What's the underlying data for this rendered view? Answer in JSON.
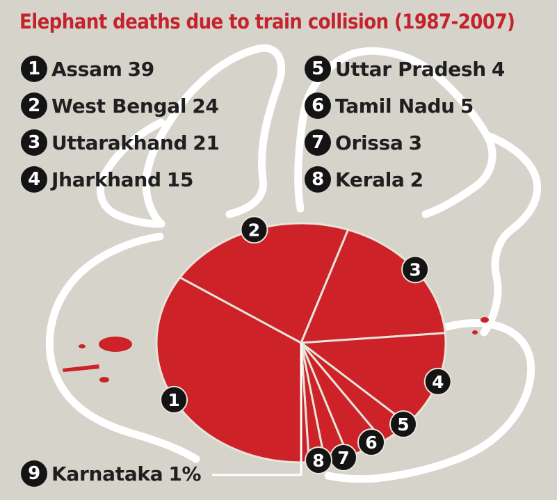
{
  "chart_data": {
    "type": "pie",
    "title": "Elephant deaths due to train collision (1987-2007)",
    "legend_placement": "top",
    "slices": [
      {
        "number": "1",
        "label": "Assam",
        "value": 39,
        "value_label": "39"
      },
      {
        "number": "2",
        "label": "West Bengal",
        "value": 24,
        "value_label": "24"
      },
      {
        "number": "3",
        "label": "Uttarakhand",
        "value": 21,
        "value_label": "21"
      },
      {
        "number": "4",
        "label": "Jharkhand",
        "value": 15,
        "value_label": "15"
      },
      {
        "number": "5",
        "label": "Uttar Pradesh",
        "value": 4,
        "value_label": "4"
      },
      {
        "number": "6",
        "label": "Tamil Nadu",
        "value": 5,
        "value_label": "5"
      },
      {
        "number": "7",
        "label": "Orissa",
        "value": 3,
        "value_label": "3"
      },
      {
        "number": "8",
        "label": "Kerala",
        "value": 2,
        "value_label": "2"
      },
      {
        "number": "9",
        "label": "Karnataka",
        "value": 1,
        "value_label": "1%"
      }
    ],
    "colors": {
      "slice": "#cc2228",
      "divider": "#e8e4da",
      "title": "#c4232b",
      "badge": "#141414",
      "background": "#d6d3cb",
      "map_outline": "#ffffff"
    }
  }
}
